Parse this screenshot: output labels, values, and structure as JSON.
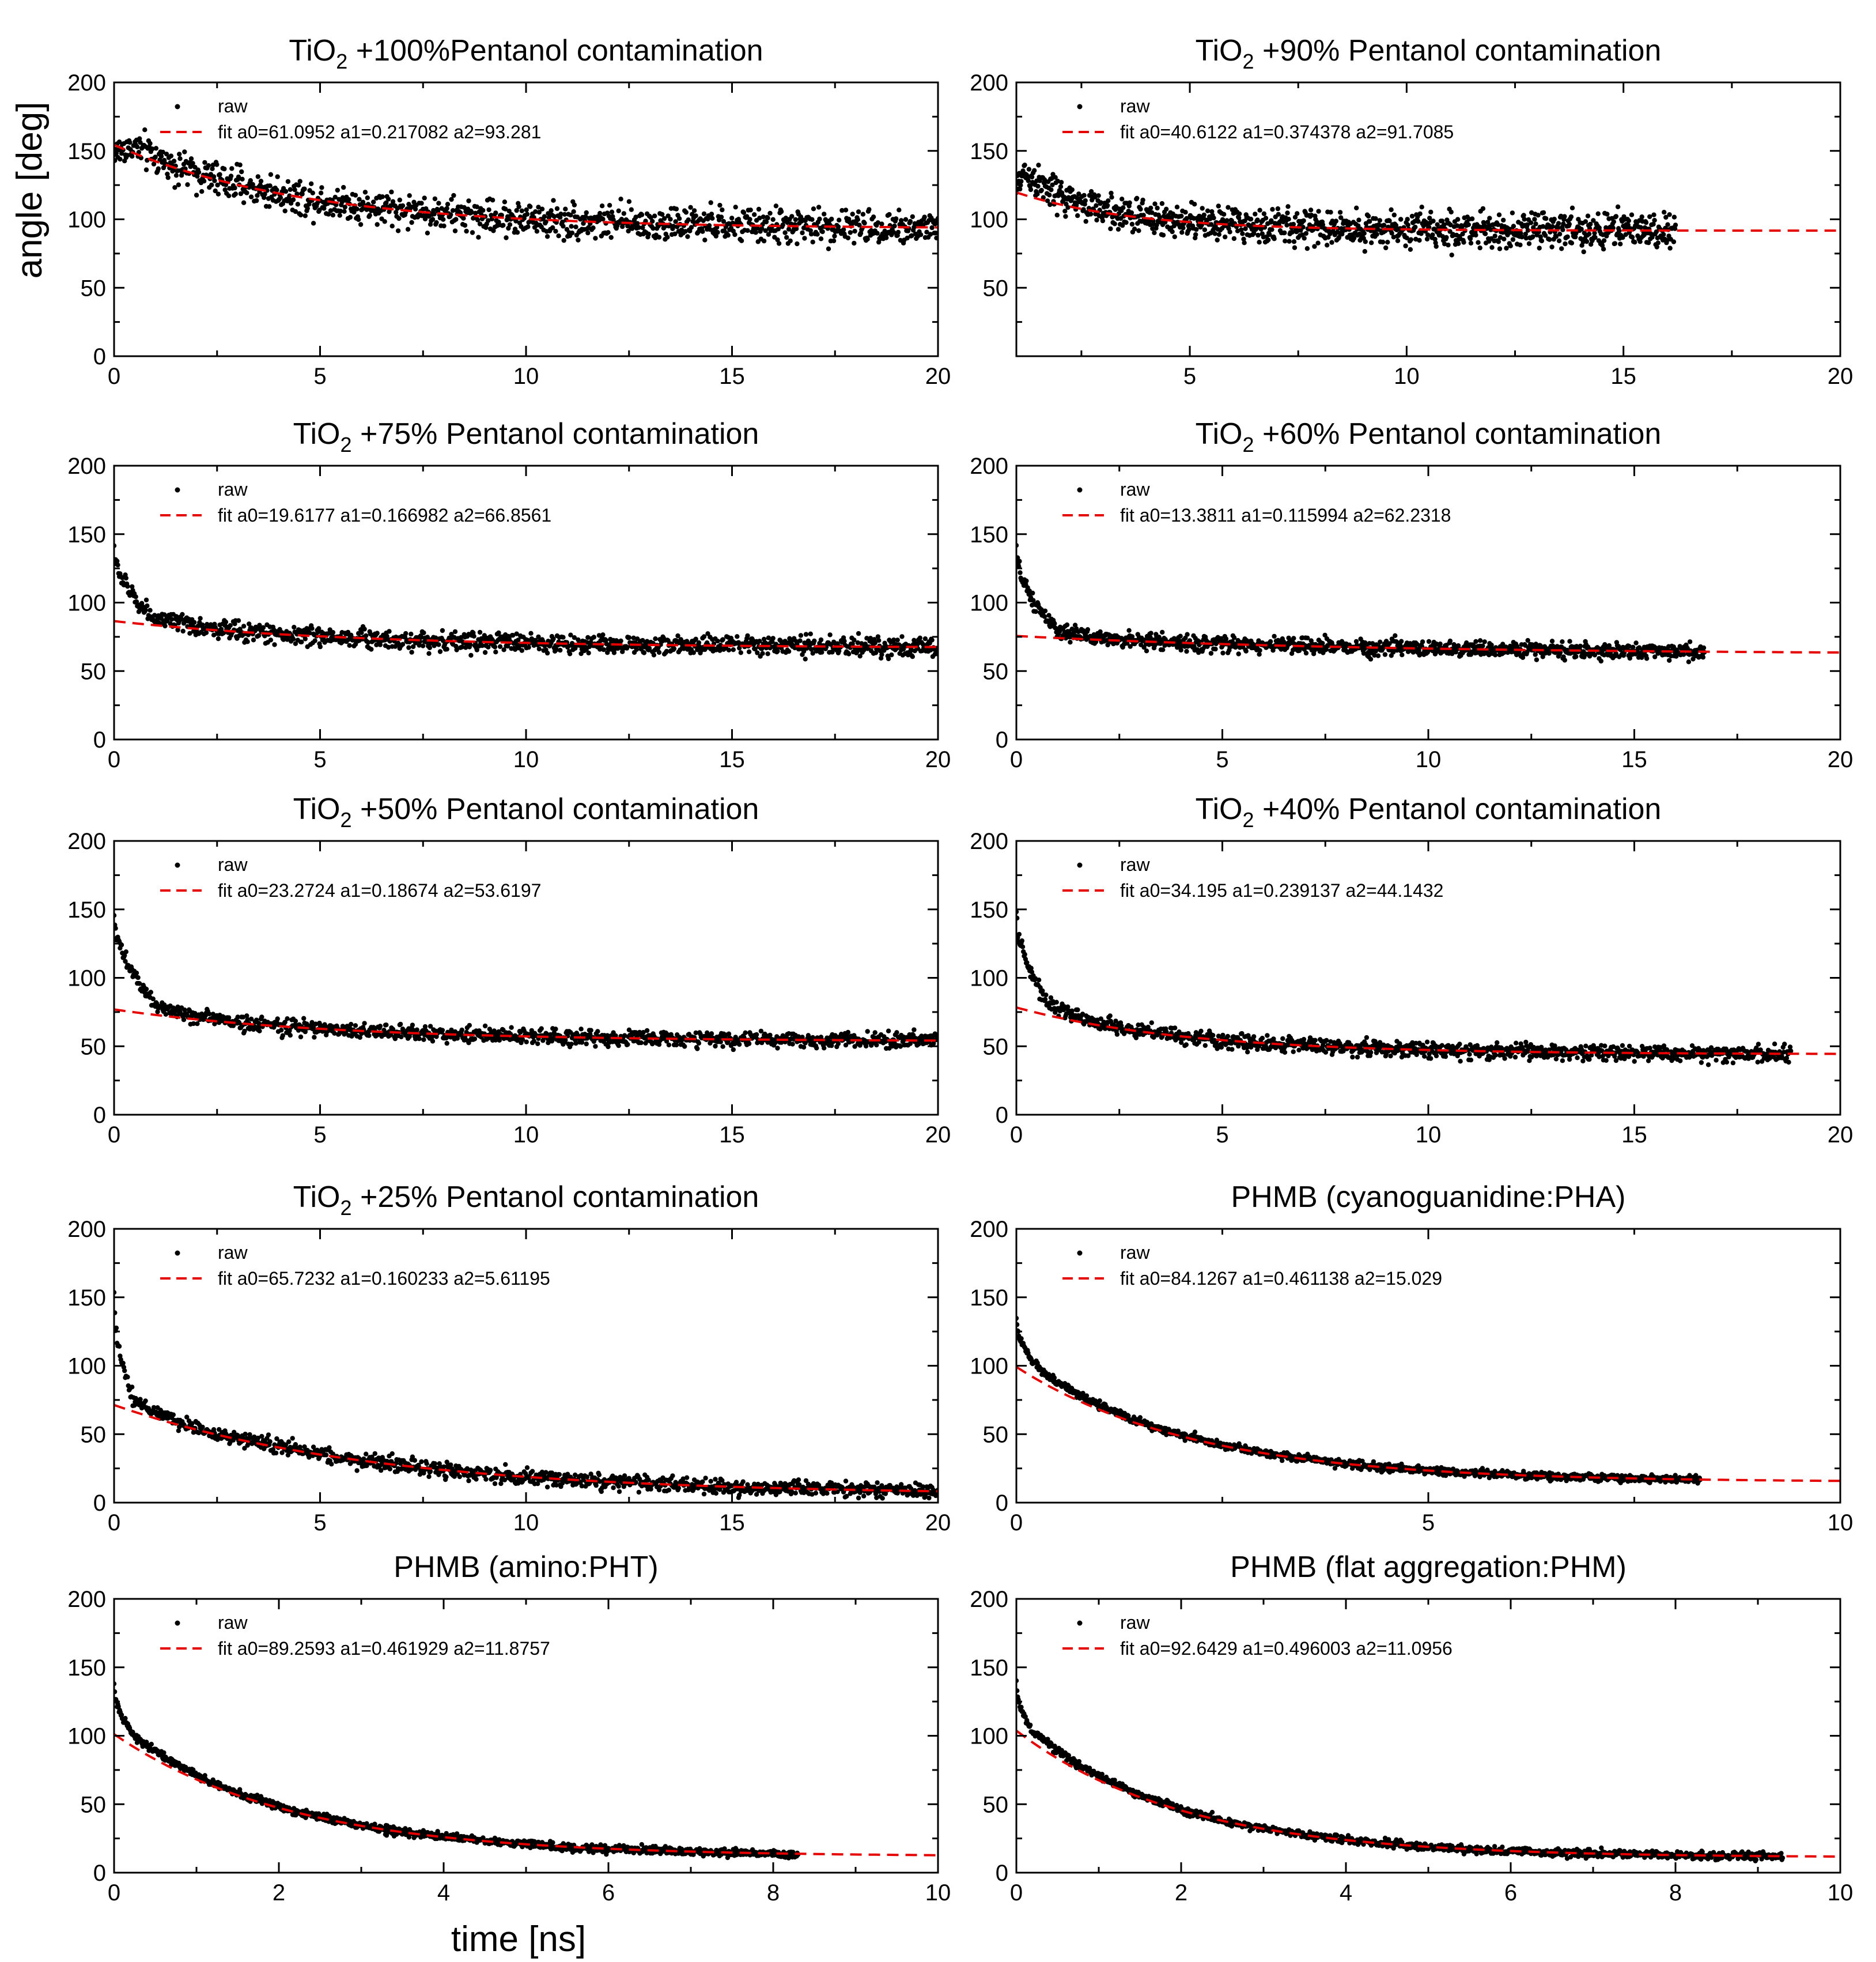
{
  "figure": {
    "ylabel": "angle [deg]",
    "xlabel": "time [ns]"
  },
  "colors": {
    "raw": "#000000",
    "fit": "#e60000",
    "axis": "#000000"
  },
  "chart_data": [
    {
      "type": "scatter",
      "title_main": "TiO",
      "title_sub": "2",
      "title_rest": " +100%Pentanol contamination",
      "xlim": [
        0,
        20
      ],
      "ylim": [
        0,
        200
      ],
      "xticks": [
        0,
        5,
        10,
        15,
        20
      ],
      "yticks": [
        0,
        50,
        100,
        150,
        200
      ],
      "legend": {
        "raw_label": "raw",
        "fit_label": "fit a0=61.0952 a1=0.217082 a2=93.281"
      },
      "fit": {
        "a0": 61.0952,
        "a1": 0.217082,
        "a2": 93.281
      },
      "raw": {
        "x_start": 0,
        "x_end": 20,
        "initial": 147,
        "knee": 0.5,
        "noise": 9
      },
      "fit_x_range": [
        0,
        20
      ]
    },
    {
      "type": "scatter",
      "title_main": "TiO",
      "title_sub": "2",
      "title_rest": " +90% Pentanol contamination",
      "xlim": [
        1,
        20
      ],
      "ylim": [
        0,
        200
      ],
      "xticks": [
        5,
        10,
        15,
        20
      ],
      "yticks": [
        50,
        100,
        150,
        200
      ],
      "legend": {
        "raw_label": "raw",
        "fit_label": "fit a0=40.6122 a1=0.374378 a2=91.7085"
      },
      "fit": {
        "a0": 40.6122,
        "a1": 0.374378,
        "a2": 91.7085
      },
      "raw": {
        "x_start": 1,
        "x_end": 16.2,
        "initial": 118,
        "knee": 0.2,
        "noise": 9
      },
      "fit_x_range": [
        1,
        20
      ]
    },
    {
      "type": "scatter",
      "title_main": "TiO",
      "title_sub": "2",
      "title_rest": " +75% Pentanol contamination",
      "xlim": [
        0,
        20
      ],
      "ylim": [
        0,
        200
      ],
      "xticks": [
        0,
        5,
        10,
        15,
        20
      ],
      "yticks": [
        0,
        50,
        100,
        150,
        200
      ],
      "legend": {
        "raw_label": "raw",
        "fit_label": "fit a0=19.6177 a1=0.166982 a2=66.8561"
      },
      "fit": {
        "a0": 19.6177,
        "a1": 0.166982,
        "a2": 66.8561
      },
      "raw": {
        "x_start": 0,
        "x_end": 20,
        "initial": 140,
        "knee": 1.0,
        "noise": 5
      },
      "fit_x_range": [
        0,
        20
      ]
    },
    {
      "type": "scatter",
      "title_main": "TiO",
      "title_sub": "2",
      "title_rest": " +60% Pentanol contamination",
      "xlim": [
        0,
        20
      ],
      "ylim": [
        0,
        200
      ],
      "xticks": [
        0,
        5,
        10,
        15,
        20
      ],
      "yticks": [
        0,
        50,
        100,
        150,
        200
      ],
      "legend": {
        "raw_label": "raw",
        "fit_label": "fit a0=13.3811 a1=0.115994 a2=62.2318"
      },
      "fit": {
        "a0": 13.3811,
        "a1": 0.115994,
        "a2": 62.2318
      },
      "raw": {
        "x_start": 0,
        "x_end": 16.7,
        "initial": 140,
        "knee": 1.0,
        "noise": 4
      },
      "fit_x_range": [
        0,
        20
      ]
    },
    {
      "type": "scatter",
      "title_main": "TiO",
      "title_sub": "2",
      "title_rest": " +50% Pentanol contamination",
      "xlim": [
        0,
        20
      ],
      "ylim": [
        0,
        200
      ],
      "xticks": [
        0,
        5,
        10,
        15,
        20
      ],
      "yticks": [
        0,
        50,
        100,
        150,
        200
      ],
      "legend": {
        "raw_label": "raw",
        "fit_label": "fit a0=23.2724 a1=0.18674 a2=53.6197"
      },
      "fit": {
        "a0": 23.2724,
        "a1": 0.18674,
        "a2": 53.6197
      },
      "raw": {
        "x_start": 0,
        "x_end": 20,
        "initial": 148,
        "knee": 1.0,
        "noise": 4
      },
      "fit_x_range": [
        0,
        20
      ]
    },
    {
      "type": "scatter",
      "title_main": "TiO",
      "title_sub": "2",
      "title_rest": " +40% Pentanol contamination",
      "xlim": [
        0,
        20
      ],
      "ylim": [
        0,
        200
      ],
      "xticks": [
        0,
        5,
        10,
        15,
        20
      ],
      "yticks": [
        0,
        50,
        100,
        150,
        200
      ],
      "legend": {
        "raw_label": "raw",
        "fit_label": "fit a0=34.195 a1=0.239137 a2=44.1432"
      },
      "fit": {
        "a0": 34.195,
        "a1": 0.239137,
        "a2": 44.1432
      },
      "raw": {
        "x_start": 0,
        "x_end": 18.8,
        "initial": 150,
        "knee": 0.8,
        "noise": 4
      },
      "fit_x_range": [
        0,
        20
      ]
    },
    {
      "type": "scatter",
      "title_main": "TiO",
      "title_sub": "2",
      "title_rest": " +25% Pentanol contamination",
      "xlim": [
        0,
        20
      ],
      "ylim": [
        0,
        200
      ],
      "xticks": [
        0,
        5,
        10,
        15,
        20
      ],
      "yticks": [
        0,
        50,
        100,
        150,
        200
      ],
      "legend": {
        "raw_label": "raw",
        "fit_label": "fit a0=65.7232 a1=0.160233 a2=5.61195"
      },
      "fit": {
        "a0": 65.7232,
        "a1": 0.160233,
        "a2": 5.61195
      },
      "raw": {
        "x_start": 0,
        "x_end": 20,
        "initial": 150,
        "knee": 0.5,
        "noise": 4
      },
      "fit_x_range": [
        0,
        20
      ]
    },
    {
      "type": "scatter",
      "title_main": "PHMB (cyanoguanidine:PHA)",
      "title_sub": "",
      "title_rest": "",
      "xlim": [
        0,
        10
      ],
      "ylim": [
        0,
        200
      ],
      "xticks": [
        0,
        5,
        10
      ],
      "yticks": [
        0,
        50,
        100,
        150,
        200
      ],
      "legend": {
        "raw_label": "raw",
        "fit_label": "fit a0=84.1267 a1=0.461138 a2=15.029"
      },
      "fit": {
        "a0": 84.1267,
        "a1": 0.461138,
        "a2": 15.029
      },
      "raw": {
        "x_start": 0,
        "x_end": 8.3,
        "initial": 135,
        "knee": 0.3,
        "noise": 2
      },
      "fit_x_range": [
        0,
        10
      ]
    },
    {
      "type": "scatter",
      "title_main": "PHMB (amino:PHT)",
      "title_sub": "",
      "title_rest": "",
      "xlim": [
        0,
        10
      ],
      "ylim": [
        0,
        200
      ],
      "xticks": [
        0,
        2,
        4,
        6,
        8,
        10
      ],
      "yticks": [
        0,
        50,
        100,
        150,
        200
      ],
      "legend": {
        "raw_label": "raw",
        "fit_label": "fit a0=89.2593 a1=0.461929 a2=11.8757"
      },
      "fit": {
        "a0": 89.2593,
        "a1": 0.461929,
        "a2": 11.8757
      },
      "raw": {
        "x_start": 0,
        "x_end": 8.3,
        "initial": 138,
        "knee": 0.25,
        "noise": 2
      },
      "fit_x_range": [
        0,
        10
      ]
    },
    {
      "type": "scatter",
      "title_main": "PHMB (flat aggregation:PHM)",
      "title_sub": "",
      "title_rest": "",
      "xlim": [
        0,
        10
      ],
      "ylim": [
        0,
        200
      ],
      "xticks": [
        0,
        2,
        4,
        6,
        8,
        10
      ],
      "yticks": [
        0,
        50,
        100,
        150,
        200
      ],
      "legend": {
        "raw_label": "raw",
        "fit_label": "fit a0=92.6429 a1=0.496003 a2=11.0956"
      },
      "fit": {
        "a0": 92.6429,
        "a1": 0.496003,
        "a2": 11.0956
      },
      "raw": {
        "x_start": 0,
        "x_end": 9.3,
        "initial": 140,
        "knee": 0.2,
        "noise": 2
      },
      "fit_x_range": [
        0,
        10
      ]
    }
  ]
}
